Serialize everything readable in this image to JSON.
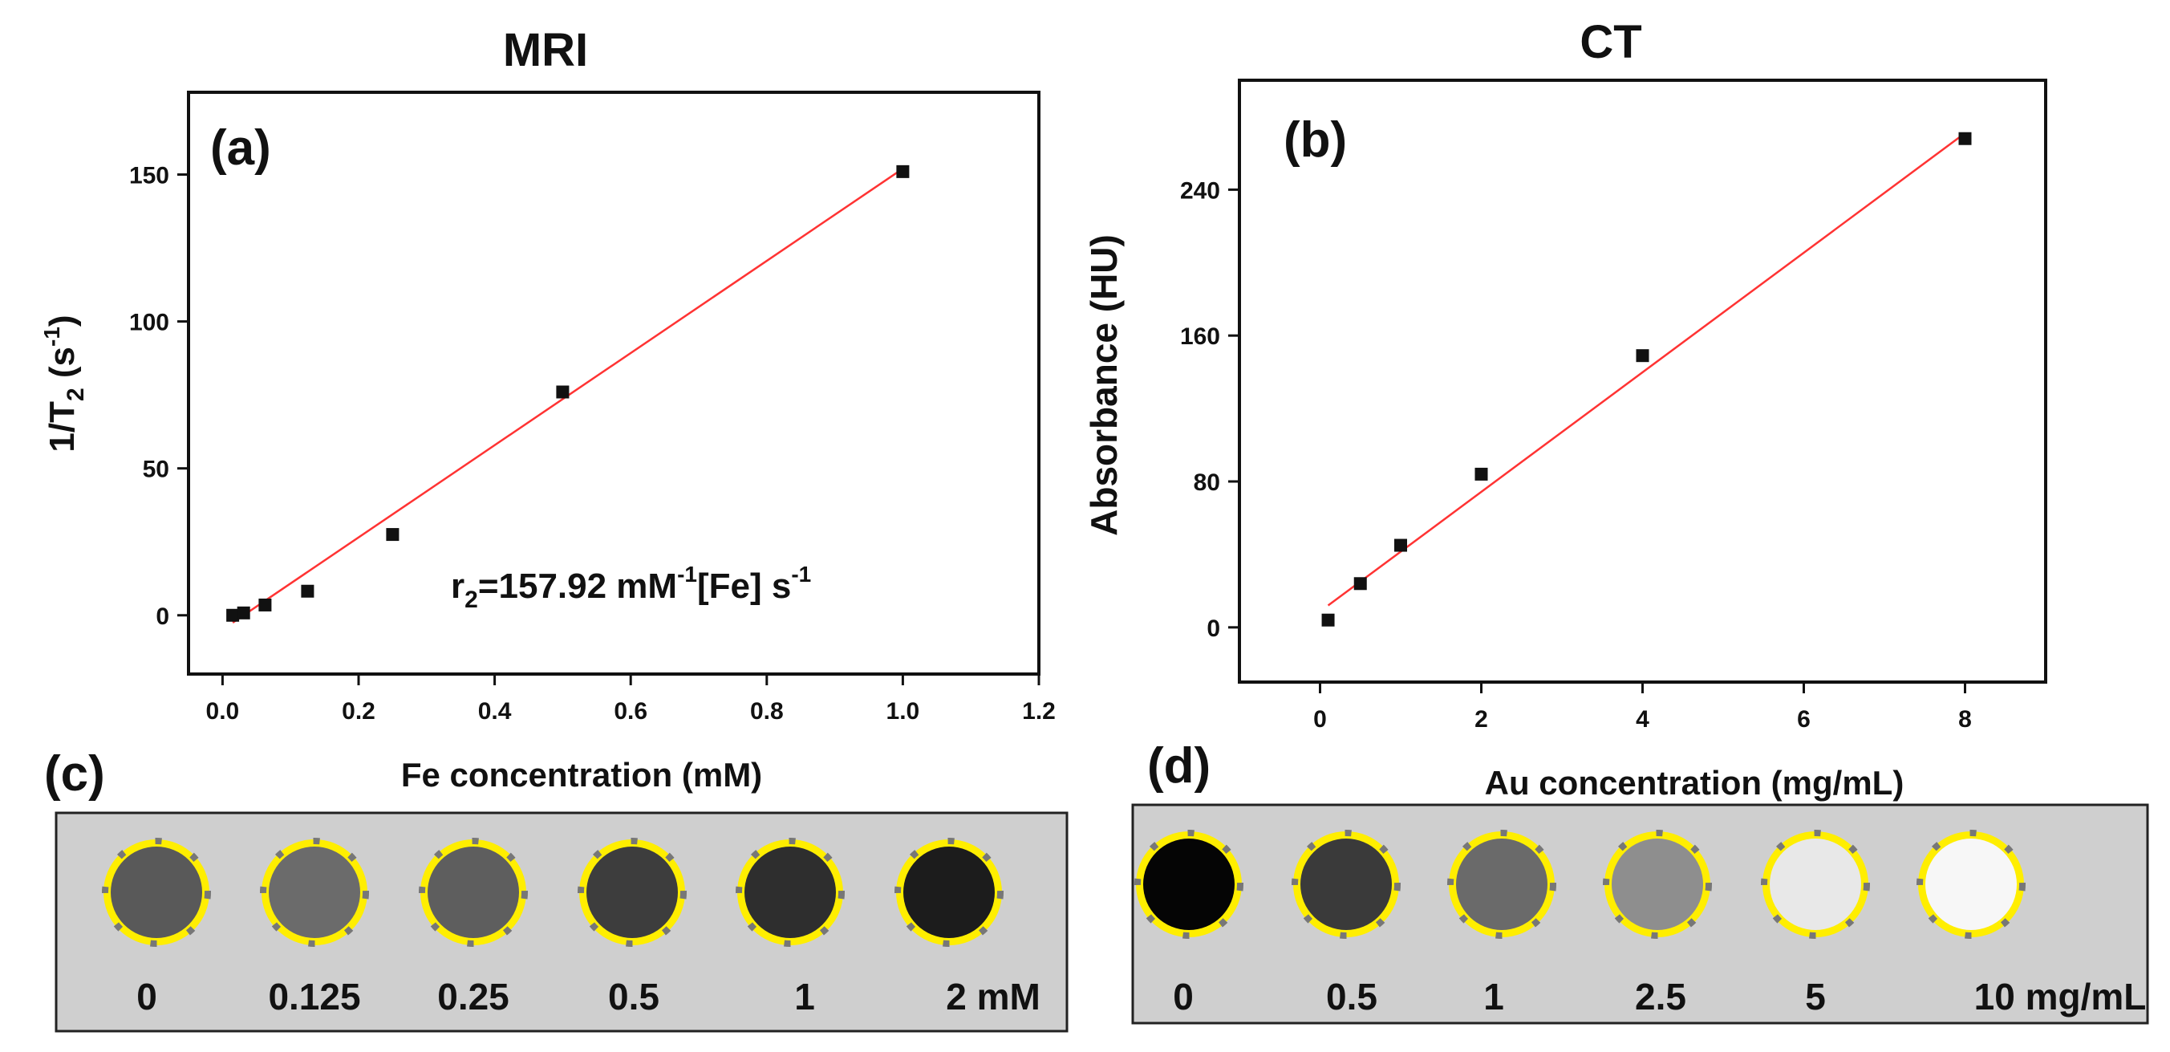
{
  "chart_data": [
    {
      "type": "scatter",
      "title": "MRI",
      "panel_label": "(a)",
      "xlabel": "Fe concentration (mM)",
      "ylabel": {
        "main": "1/T",
        "sub": "2",
        "mid": " (s",
        "sup": "-1",
        "end": ")"
      },
      "xlim": [
        -0.05,
        1.2
      ],
      "ylim": [
        -20,
        178
      ],
      "xticks": [
        "0.0",
        "0.2",
        "0.4",
        "0.6",
        "0.8",
        "1.0",
        "1.2"
      ],
      "xtick_values": [
        0,
        0.2,
        0.4,
        0.6,
        0.8,
        1.0,
        1.2
      ],
      "yticks": [
        "0",
        "50",
        "100",
        "150"
      ],
      "ytick_values": [
        0,
        50,
        100,
        150
      ],
      "series": [
        {
          "name": "data",
          "x": [
            0.015,
            0.031,
            0.0625,
            0.125,
            0.25,
            0.5,
            1.0
          ],
          "y": [
            0,
            0.8,
            3.5,
            8.2,
            27.5,
            76.0,
            151.0
          ]
        }
      ],
      "fit": {
        "x": [
          0.015,
          1.0
        ],
        "y": [
          -2.5,
          152.0
        ],
        "color": "#ff3333"
      },
      "annotation": {
        "a": "r",
        "b": "2",
        "c": "=157.92 mM",
        "d": "-1",
        "e": "[Fe] s",
        "f": "-1"
      }
    },
    {
      "type": "scatter",
      "title": "CT",
      "panel_label": "(b)",
      "xlabel": "Au concentration (mg/mL)",
      "ylabel": "Absorbance (HU)",
      "xlim": [
        -1,
        9
      ],
      "ylim": [
        -30,
        300
      ],
      "xticks": [
        "0",
        "2",
        "4",
        "6",
        "8"
      ],
      "xtick_values": [
        0,
        2,
        4,
        6,
        8
      ],
      "yticks": [
        "0",
        "80",
        "160",
        "240"
      ],
      "ytick_values": [
        0,
        80,
        160,
        240
      ],
      "series": [
        {
          "name": "data",
          "x": [
            0.1,
            0.5,
            1,
            2,
            4,
            8
          ],
          "y": [
            4,
            24,
            45,
            84,
            149,
            268
          ]
        }
      ],
      "fit": {
        "x": [
          0.1,
          8.0
        ],
        "y": [
          12,
          271
        ],
        "color": "#ff3333"
      }
    }
  ],
  "panel_c": {
    "label": "(c)",
    "wells": [
      {
        "label": "0",
        "fill": "#595959"
      },
      {
        "label": "0.125",
        "fill": "#6b6b6b"
      },
      {
        "label": "0.25",
        "fill": "#5e5e5e"
      },
      {
        "label": "0.5",
        "fill": "#3d3d3d"
      },
      {
        "label": "1",
        "fill": "#2e2e2e"
      },
      {
        "label": "2 mM",
        "fill": "#1c1c1c"
      }
    ]
  },
  "panel_d": {
    "label": "(d)",
    "wells": [
      {
        "label": "0",
        "fill": "#050505"
      },
      {
        "label": "0.5",
        "fill": "#3a3a3a"
      },
      {
        "label": "1",
        "fill": "#6a6a6a"
      },
      {
        "label": "2.5",
        "fill": "#8e8e8e"
      },
      {
        "label": "5",
        "fill": "#e8e8e8"
      },
      {
        "label": "10 mg/mL",
        "fill": "#f7f7f7"
      }
    ]
  },
  "colors": {
    "ring": "#ffee00",
    "dash": "#777777",
    "box": "#cfcfcf",
    "fit": "#ff3333"
  }
}
